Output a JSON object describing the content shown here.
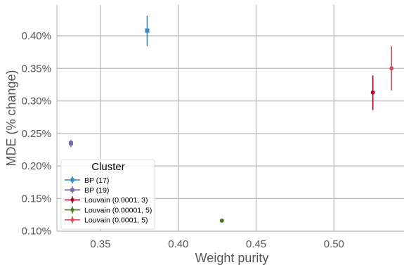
{
  "chart_data": {
    "type": "scatter",
    "xlabel": "Weight purity",
    "ylabel": "MDE (% change)",
    "xlim": [
      0.322,
      0.545
    ],
    "ylim": [
      0.0997,
      0.4475
    ],
    "x_ticks": [
      0.35,
      0.4,
      0.45,
      0.5
    ],
    "x_tick_labels": [
      "0.35",
      "0.40",
      "0.45",
      "0.50"
    ],
    "y_ticks": [
      0.1,
      0.15,
      0.2,
      0.25,
      0.3,
      0.35,
      0.4
    ],
    "y_tick_labels": [
      "0.10%",
      "0.15%",
      "0.20%",
      "0.25%",
      "0.30%",
      "0.35%",
      "0.40%"
    ],
    "grid": true,
    "legend": {
      "title": "Cluster",
      "placement": "lower-left"
    },
    "series": [
      {
        "name": "BP (17)",
        "color": "#348abd",
        "marker": "square",
        "x": 0.38,
        "y": 0.408,
        "err_low": 0.384,
        "err_high": 0.431
      },
      {
        "name": "BP (19)",
        "color": "#7a68a6",
        "marker": "square",
        "x": 0.331,
        "y": 0.235,
        "err_low": 0.229,
        "err_high": 0.24
      },
      {
        "name": "Louvain (0.0001, 3)",
        "color": "#a60628",
        "marker": "circle",
        "x": 0.525,
        "y": 0.313,
        "err_low": 0.286,
        "err_high": 0.339
      },
      {
        "name": "Louvain (0.00001, 5)",
        "color": "#467821",
        "marker": "circle",
        "x": 0.428,
        "y": 0.116,
        "err_low": 0.116,
        "err_high": 0.116
      },
      {
        "name": "Louvain (0.0001, 5)",
        "color": "#d7495c",
        "marker": "circle",
        "x": 0.537,
        "y": 0.35,
        "err_low": 0.316,
        "err_high": 0.384
      }
    ]
  }
}
